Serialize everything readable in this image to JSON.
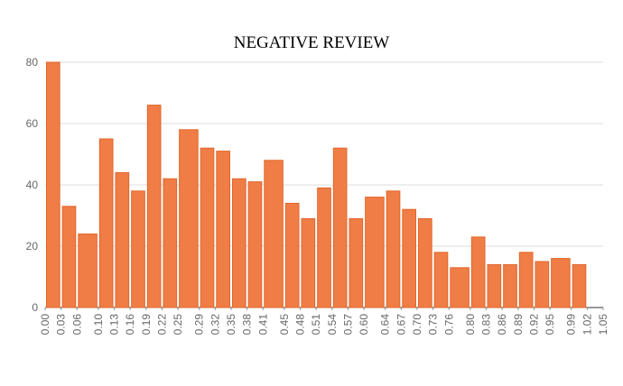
{
  "chart_data": {
    "type": "histogram",
    "title": "NEGATIVE REVIEW",
    "bins": [
      0,
      0.03,
      0.06,
      0.1,
      0.13,
      0.16,
      0.19,
      0.22,
      0.25,
      0.29,
      0.32,
      0.35,
      0.38,
      0.41,
      0.45,
      0.48,
      0.51,
      0.54,
      0.57,
      0.6,
      0.64,
      0.67,
      0.7,
      0.73,
      0.76,
      0.8,
      0.83,
      0.86,
      0.89,
      0.92,
      0.95,
      0.99,
      1.02
    ],
    "counts": [
      80,
      33,
      24,
      55,
      44,
      38,
      66,
      42,
      58,
      52,
      51,
      42,
      41,
      48,
      34,
      29,
      39,
      52,
      29,
      36,
      38,
      32,
      29,
      18,
      13,
      23,
      14,
      14,
      18,
      15,
      16,
      14
    ],
    "color": "#f07d45",
    "xlim": [
      0,
      1.05
    ],
    "xticks": [
      {
        "value": 0,
        "label": "0.00"
      },
      0.03,
      0.06,
      {
        "value": 0.1,
        "label": "0.10"
      },
      0.13,
      0.16,
      0.19,
      0.22,
      0.25,
      0.29,
      0.32,
      0.35,
      0.38,
      0.41,
      0.45,
      0.48,
      0.51,
      0.54,
      0.57,
      {
        "value": 0.6,
        "label": "0.60"
      },
      0.64,
      0.67,
      {
        "value": 0.7,
        "label": "0.70"
      },
      0.73,
      0.76,
      {
        "value": 0.8,
        "label": "0.80"
      },
      0.83,
      0.86,
      0.89,
      0.92,
      0.95,
      0.99,
      1.02,
      1.05
    ],
    "ylim": [
      0,
      80
    ],
    "yticks": [
      0,
      20,
      40,
      60,
      80
    ],
    "grid": true
  }
}
